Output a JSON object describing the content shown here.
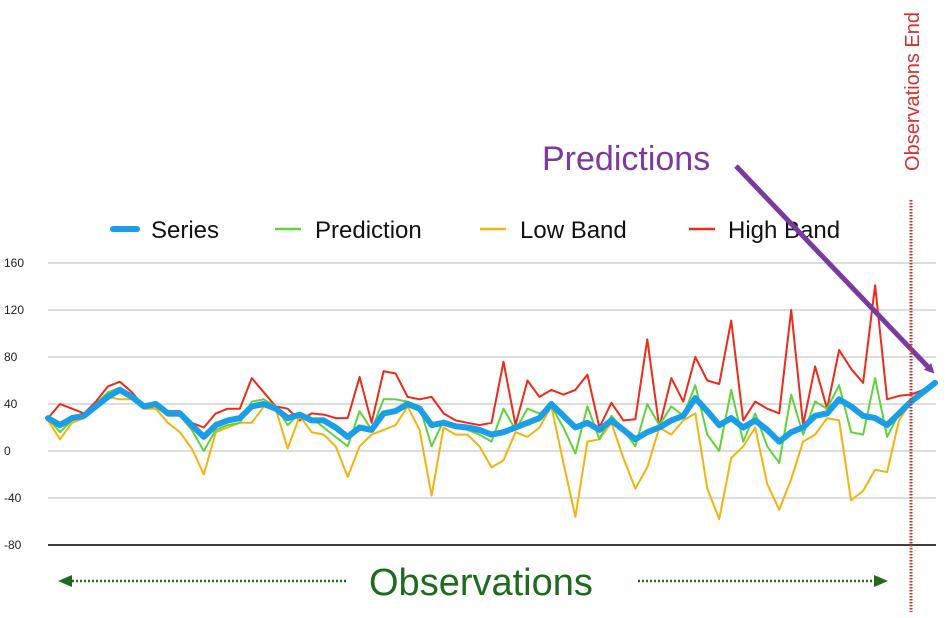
{
  "chart_data": {
    "type": "line",
    "title": "",
    "xlabel": "",
    "ylabel": "",
    "ylim": [
      -80,
      160
    ],
    "yticks": [
      160,
      120,
      80,
      40,
      0,
      -40,
      -80
    ],
    "grid": true,
    "legend_position": "top",
    "observations_count": 90,
    "series": [
      {
        "name": "Series",
        "color": "#1a9ee8",
        "values": [
          28,
          22,
          28,
          30,
          38,
          46,
          52,
          46,
          38,
          40,
          32,
          32,
          22,
          12,
          22,
          26,
          28,
          38,
          40,
          36,
          28,
          31,
          26,
          26,
          20,
          12,
          20,
          18,
          32,
          34,
          40,
          36,
          22,
          24,
          21,
          20,
          18,
          14,
          16,
          20,
          24,
          28,
          40,
          30,
          20,
          24,
          18,
          26,
          18,
          10,
          16,
          20,
          26,
          30,
          45,
          34,
          22,
          28,
          20,
          26,
          18,
          8,
          16,
          20,
          30,
          32,
          44,
          38,
          30,
          28,
          22,
          32,
          42,
          50,
          58
        ]
      },
      {
        "name": "Prediction",
        "color": "#5fd43a",
        "values": [
          28,
          16,
          26,
          30,
          40,
          50,
          54,
          44,
          38,
          38,
          30,
          30,
          18,
          0,
          18,
          22,
          24,
          42,
          44,
          38,
          22,
          32,
          28,
          20,
          12,
          4,
          34,
          18,
          44,
          44,
          42,
          38,
          4,
          26,
          22,
          18,
          14,
          8,
          36,
          18,
          36,
          32,
          38,
          20,
          -2,
          38,
          10,
          30,
          18,
          4,
          40,
          22,
          38,
          30,
          56,
          14,
          0,
          52,
          8,
          32,
          4,
          -10,
          48,
          14,
          42,
          36,
          56,
          16,
          14,
          62,
          12,
          32,
          44,
          52,
          58
        ]
      },
      {
        "name": "Low Band",
        "color": "#f5b30f",
        "values": [
          26,
          10,
          24,
          28,
          38,
          46,
          44,
          44,
          36,
          36,
          24,
          16,
          2,
          -20,
          16,
          20,
          24,
          24,
          38,
          36,
          2,
          30,
          16,
          14,
          4,
          -22,
          4,
          14,
          18,
          22,
          38,
          18,
          -38,
          20,
          14,
          14,
          4,
          -14,
          -8,
          16,
          12,
          20,
          38,
          -10,
          -56,
          8,
          10,
          24,
          -6,
          -32,
          -14,
          20,
          14,
          26,
          32,
          -32,
          -58,
          -6,
          4,
          20,
          -28,
          -50,
          -24,
          8,
          14,
          28,
          26,
          -42,
          -34,
          -16,
          -18,
          26,
          42,
          52,
          58
        ]
      },
      {
        "name": "High Band",
        "color": "#ee2a1a",
        "values": [
          28,
          40,
          36,
          32,
          42,
          55,
          59,
          50,
          38,
          38,
          34,
          34,
          24,
          20,
          32,
          36,
          36,
          62,
          50,
          38,
          36,
          26,
          32,
          31,
          28,
          28,
          63,
          24,
          68,
          66,
          46,
          44,
          46,
          32,
          26,
          24,
          22,
          24,
          76,
          22,
          60,
          46,
          52,
          48,
          52,
          65,
          20,
          41,
          26,
          27,
          95,
          20,
          62,
          42,
          80,
          60,
          57,
          111,
          26,
          42,
          36,
          32,
          120,
          22,
          72,
          36,
          86,
          70,
          58,
          141,
          44,
          47,
          48,
          52,
          58
        ]
      }
    ],
    "annotations": {
      "predictions": "Predictions",
      "observations": "Observations",
      "observations_end": "Observations End"
    }
  },
  "colors": {
    "predictions_annotation": "#7c3aa0",
    "observations_annotation": "#1e6b1e",
    "observations_end": "#d63030",
    "axis": "#000000",
    "grid": "#bbbbbb"
  }
}
